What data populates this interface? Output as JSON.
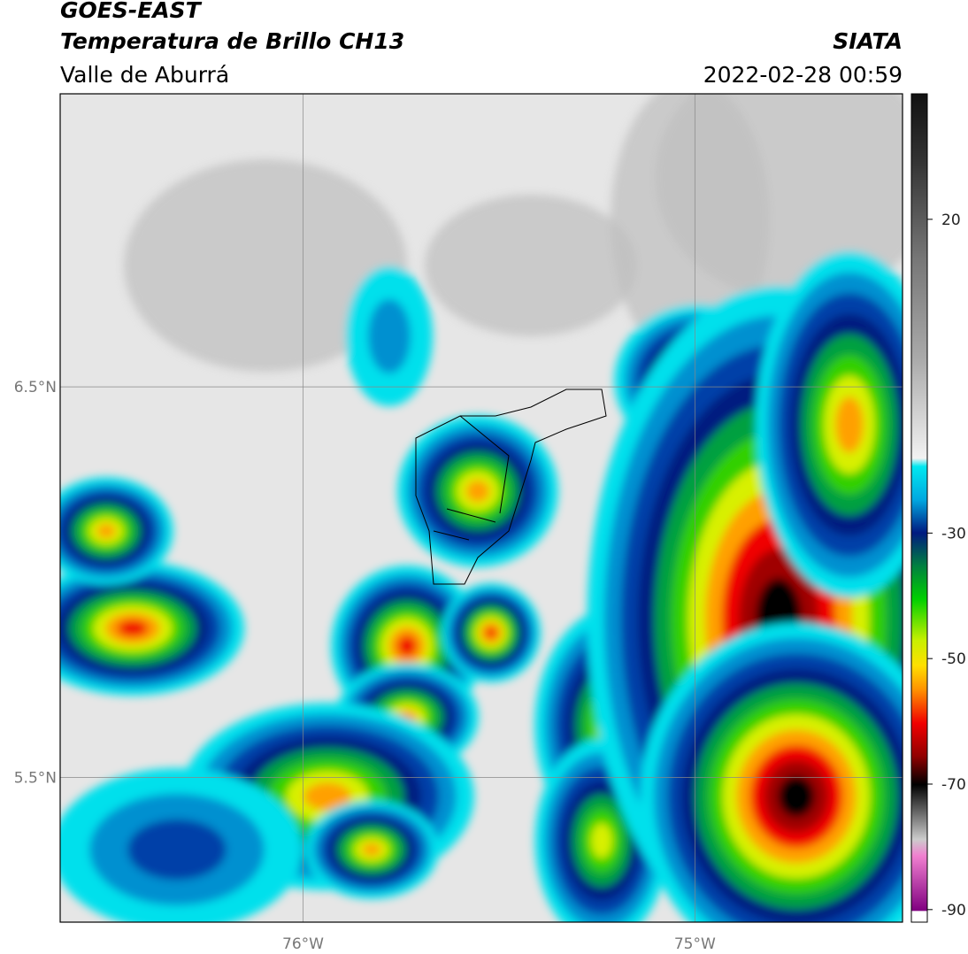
{
  "header": {
    "satellite": "GOES-EAST",
    "product": "Temperatura de Brillo CH13",
    "region": "Valle de Aburrá",
    "agency": "SIATA",
    "datetime": "2022-02-28 00:59"
  },
  "map": {
    "lon_range": [
      -76.62,
      -74.47
    ],
    "lat_range": [
      5.13,
      7.25
    ],
    "lon_ticks": [
      {
        "value": -76,
        "label": "76°W"
      },
      {
        "value": -75,
        "label": "75°W"
      }
    ],
    "lat_ticks": [
      {
        "value": 6.5,
        "label": "6.5°N"
      },
      {
        "value": 5.5,
        "label": "5.5°N"
      }
    ]
  },
  "colorbar": {
    "range": [
      -92,
      40
    ],
    "ticks": [
      20,
      -30,
      -50,
      -70,
      -90
    ]
  }
}
